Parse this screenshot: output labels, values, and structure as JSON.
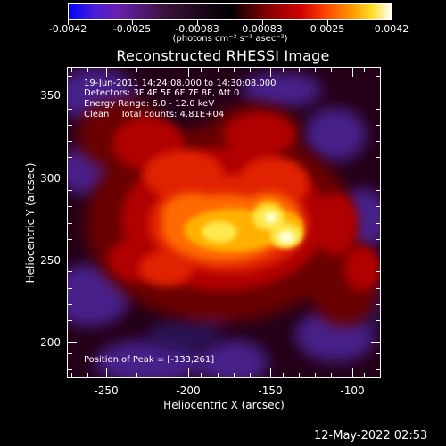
{
  "colorbar": {
    "tick_labels": [
      "-0.0042",
      "-0.0025",
      "-0.00083",
      "0.00083",
      "0.0025",
      "0.0042"
    ],
    "units_label": "(photons cm⁻² s⁻¹ asec⁻²)",
    "range": [
      -0.0042,
      0.0042
    ],
    "colors": [
      "#0000ff",
      "#6a1fb0",
      "#000000",
      "#d20000",
      "#ff9b00",
      "#ffffff"
    ]
  },
  "title": "Reconstructed RHESSI Image",
  "info": {
    "time": "19-Jun-2011 14:24:08.000 to 14:30:08.000",
    "detectors": "Detectors: 3F 4F 5F 6F 7F 8F, Att 0",
    "energy": "Energy Range: 6.0 - 12.0 keV",
    "clean": "Clean    Total counts: 4.81E+04",
    "peak": "Position of Peak = [-133,261]"
  },
  "axes": {
    "xlabel": "Heliocentric X (arcsec)",
    "ylabel": "Heliocentric Y (arcsec)",
    "xticks": [
      "-250",
      "-200",
      "-150",
      "-100"
    ],
    "yticks": [
      "350",
      "300",
      "250",
      "200"
    ],
    "xrange": [
      -272,
      -80
    ],
    "yrange": [
      175,
      365
    ]
  },
  "footer_timestamp": "12-May-2022 02:53"
}
